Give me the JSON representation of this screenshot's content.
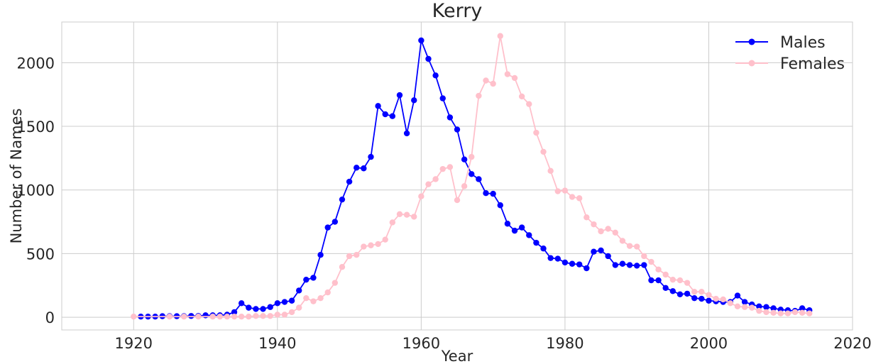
{
  "chart_data": {
    "type": "line",
    "title": "Kerry",
    "xlabel": "Year",
    "ylabel": "Number of Names",
    "xlim": [
      1910,
      2020
    ],
    "ylim": [
      -100,
      2320
    ],
    "xticks": [
      1920,
      1940,
      1960,
      1980,
      2000,
      2020
    ],
    "yticks": [
      0,
      500,
      1000,
      1500,
      2000
    ],
    "grid": true,
    "legend_position": "top-right",
    "series": [
      {
        "name": "Males",
        "color": "#0000ff",
        "x": [
          1921,
          1922,
          1923,
          1924,
          1925,
          1926,
          1927,
          1928,
          1929,
          1930,
          1931,
          1932,
          1933,
          1934,
          1935,
          1936,
          1937,
          1938,
          1939,
          1940,
          1941,
          1942,
          1943,
          1944,
          1945,
          1946,
          1947,
          1948,
          1949,
          1950,
          1951,
          1952,
          1953,
          1954,
          1955,
          1956,
          1957,
          1958,
          1959,
          1960,
          1961,
          1962,
          1963,
          1964,
          1965,
          1966,
          1967,
          1968,
          1969,
          1970,
          1971,
          1972,
          1973,
          1974,
          1975,
          1976,
          1977,
          1978,
          1979,
          1980,
          1981,
          1982,
          1983,
          1984,
          1985,
          1986,
          1987,
          1988,
          1989,
          1990,
          1991,
          1992,
          1993,
          1994,
          1995,
          1996,
          1997,
          1998,
          1999,
          2000,
          2001,
          2002,
          2003,
          2004,
          2005,
          2006,
          2007,
          2008,
          2009,
          2010,
          2011,
          2012,
          2013,
          2014
        ],
        "values": [
          5,
          5,
          5,
          8,
          8,
          8,
          8,
          10,
          10,
          15,
          15,
          15,
          20,
          40,
          110,
          75,
          65,
          65,
          80,
          110,
          120,
          130,
          210,
          295,
          310,
          490,
          705,
          750,
          925,
          1065,
          1175,
          1170,
          1260,
          1660,
          1595,
          1580,
          1745,
          1445,
          1705,
          2175,
          2030,
          1900,
          1720,
          1570,
          1475,
          1240,
          1125,
          1085,
          975,
          970,
          880,
          735,
          680,
          705,
          645,
          585,
          540,
          465,
          460,
          430,
          420,
          415,
          385,
          515,
          525,
          480,
          410,
          420,
          410,
          405,
          410,
          290,
          290,
          230,
          205,
          180,
          185,
          150,
          145,
          130,
          125,
          120,
          120,
          170,
          120,
          100,
          85,
          80,
          70,
          60,
          55,
          50,
          70,
          55
        ]
      },
      {
        "name": "Females",
        "color": "#ffc0cb",
        "x": [
          1920,
          1925,
          1927,
          1929,
          1931,
          1932,
          1933,
          1934,
          1935,
          1936,
          1937,
          1938,
          1939,
          1940,
          1941,
          1942,
          1943,
          1944,
          1945,
          1946,
          1947,
          1948,
          1949,
          1950,
          1951,
          1952,
          1953,
          1954,
          1955,
          1956,
          1957,
          1958,
          1959,
          1960,
          1961,
          1962,
          1963,
          1964,
          1965,
          1966,
          1967,
          1968,
          1969,
          1970,
          1971,
          1972,
          1973,
          1974,
          1975,
          1976,
          1977,
          1978,
          1979,
          1980,
          1981,
          1982,
          1983,
          1984,
          1985,
          1986,
          1987,
          1988,
          1989,
          1990,
          1991,
          1992,
          1993,
          1994,
          1995,
          1996,
          1997,
          1998,
          1999,
          2000,
          2001,
          2002,
          2003,
          2004,
          2005,
          2006,
          2007,
          2008,
          2009,
          2010,
          2011,
          2012,
          2013,
          2014
        ],
        "values": [
          5,
          5,
          5,
          5,
          5,
          5,
          5,
          5,
          5,
          5,
          10,
          10,
          10,
          20,
          20,
          40,
          75,
          150,
          125,
          150,
          195,
          270,
          395,
          480,
          490,
          555,
          565,
          575,
          610,
          745,
          810,
          805,
          790,
          950,
          1045,
          1085,
          1165,
          1180,
          920,
          1030,
          1260,
          1740,
          1860,
          1835,
          2210,
          1910,
          1880,
          1735,
          1675,
          1450,
          1300,
          1150,
          990,
          995,
          945,
          935,
          785,
          730,
          675,
          695,
          665,
          600,
          560,
          555,
          480,
          435,
          375,
          335,
          295,
          290,
          270,
          200,
          200,
          175,
          145,
          140,
          110,
          85,
          80,
          75,
          50,
          40,
          35,
          30,
          30,
          40,
          35,
          30
        ]
      }
    ]
  }
}
